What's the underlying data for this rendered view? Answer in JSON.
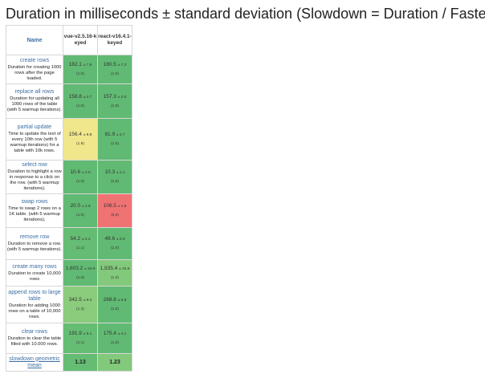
{
  "page": {
    "title": "Duration in milliseconds ± standard deviation (Slowdown = Duration / Fastest)"
  },
  "table": {
    "name_header": "Name",
    "frameworks": [
      "vue-v2.5.16-keyed",
      "react-v16.4.1-keyed"
    ],
    "rows": [
      {
        "name": "create rows",
        "desc": "Duration for creating 1000 rows after the page loaded.",
        "cells": [
          {
            "value": "182.1",
            "sd": "± 7.8",
            "factor": "(1.0)",
            "color": "#61ba73"
          },
          {
            "value": "180.5",
            "sd": "± 7.3",
            "factor": "(1.0)",
            "color": "#61ba73"
          }
        ]
      },
      {
        "name": "replace all rows",
        "desc": "Duration for updating all 1000 rows of the table (with 5 warmup iterations).",
        "cells": [
          {
            "value": "158.8",
            "sd": "± 2.7",
            "factor": "(1.0)",
            "color": "#61ba73"
          },
          {
            "value": "157.3",
            "sd": "± 2.0",
            "factor": "(1.0)",
            "color": "#61ba73"
          }
        ]
      },
      {
        "name": "partial update",
        "desc": "Time to update the text of every 10th row (with 5 warmup iterations) for a table with 10k rows.",
        "cells": [
          {
            "value": "156.4",
            "sd": "± 9.8",
            "factor": "(1.9)",
            "color": "#f0e68c"
          },
          {
            "value": "81.9",
            "sd": "± 2.7",
            "factor": "(1.0)",
            "color": "#61ba73"
          }
        ]
      },
      {
        "name": "select row",
        "desc": "Duration to highlight a row in response to a click on the row. (with 5 warmup iterations).",
        "cells": [
          {
            "value": "10.6",
            "sd": "± 2.0",
            "factor": "(1.0)",
            "color": "#61ba73"
          },
          {
            "value": "10.3",
            "sd": "± 2.1",
            "factor": "(1.0)",
            "color": "#61ba73"
          }
        ]
      },
      {
        "name": "swap rows",
        "desc": "Time to swap 2 rows on a 1K table. (with 5 warmup iterations).",
        "cells": [
          {
            "value": "20.0",
            "sd": "± 2.9",
            "factor": "(1.0)",
            "color": "#61ba73"
          },
          {
            "value": "106.5",
            "sd": "± 1.8",
            "factor": "(5.3)",
            "color": "#f07373"
          }
        ]
      },
      {
        "name": "remove row",
        "desc": "Duration to remove a row. (with 5 warmup iterations).",
        "cells": [
          {
            "value": "54.2",
            "sd": "± 2.2",
            "factor": "(1.1)",
            "color": "#65bd74"
          },
          {
            "value": "49.6",
            "sd": "± 0.9",
            "factor": "(1.0)",
            "color": "#61ba73"
          }
        ]
      },
      {
        "name": "create many rows",
        "desc": "Duration to create 10,000 rows",
        "cells": [
          {
            "value": "1,603.2",
            "sd": "± 34.9",
            "factor": "(1.0)",
            "color": "#61ba73"
          },
          {
            "value": "1,935.4",
            "sd": "± 33.8",
            "factor": "(1.2)",
            "color": "#83c97b"
          }
        ]
      },
      {
        "name": "append rows to large table",
        "desc": "Duration for adding 1000 rows on a table of 10,000 rows.",
        "cells": [
          {
            "value": "342.5",
            "sd": "± 9.0",
            "factor": "(1.3)",
            "color": "#8bcc7c"
          },
          {
            "value": "268.6",
            "sd": "± 6.9",
            "factor": "(1.0)",
            "color": "#61ba73"
          }
        ]
      },
      {
        "name": "clear rows",
        "desc": "Duration to clear the table filled with 10.000 rows.",
        "cells": [
          {
            "value": "191.9",
            "sd": "± 5.1",
            "factor": "(1.1)",
            "color": "#65bd74"
          },
          {
            "value": "175.4",
            "sd": "± 4.1",
            "factor": "(1.0)",
            "color": "#61ba73"
          }
        ]
      }
    ],
    "geometric_mean": {
      "label": "slowdown geometric mean",
      "values": [
        {
          "value": "1.13",
          "color": "#65bd74"
        },
        {
          "value": "1.23",
          "color": "#83c97b"
        }
      ]
    }
  }
}
